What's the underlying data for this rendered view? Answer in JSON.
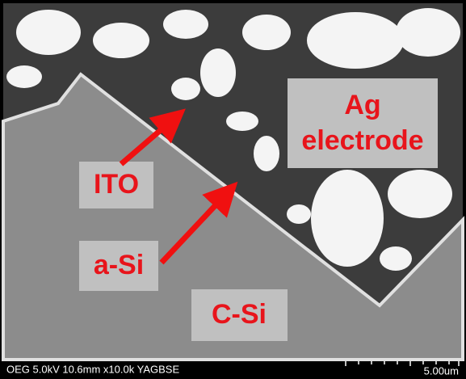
{
  "labels": {
    "electrode": [
      "Ag",
      "electrode"
    ],
    "ito": "ITO",
    "asi": "a-Si",
    "csi": "C-Si"
  },
  "info_bar": {
    "settings": "OEG 5.0kV 10.6mm x10.0k YAGBSE",
    "scale": "5.00um"
  }
}
